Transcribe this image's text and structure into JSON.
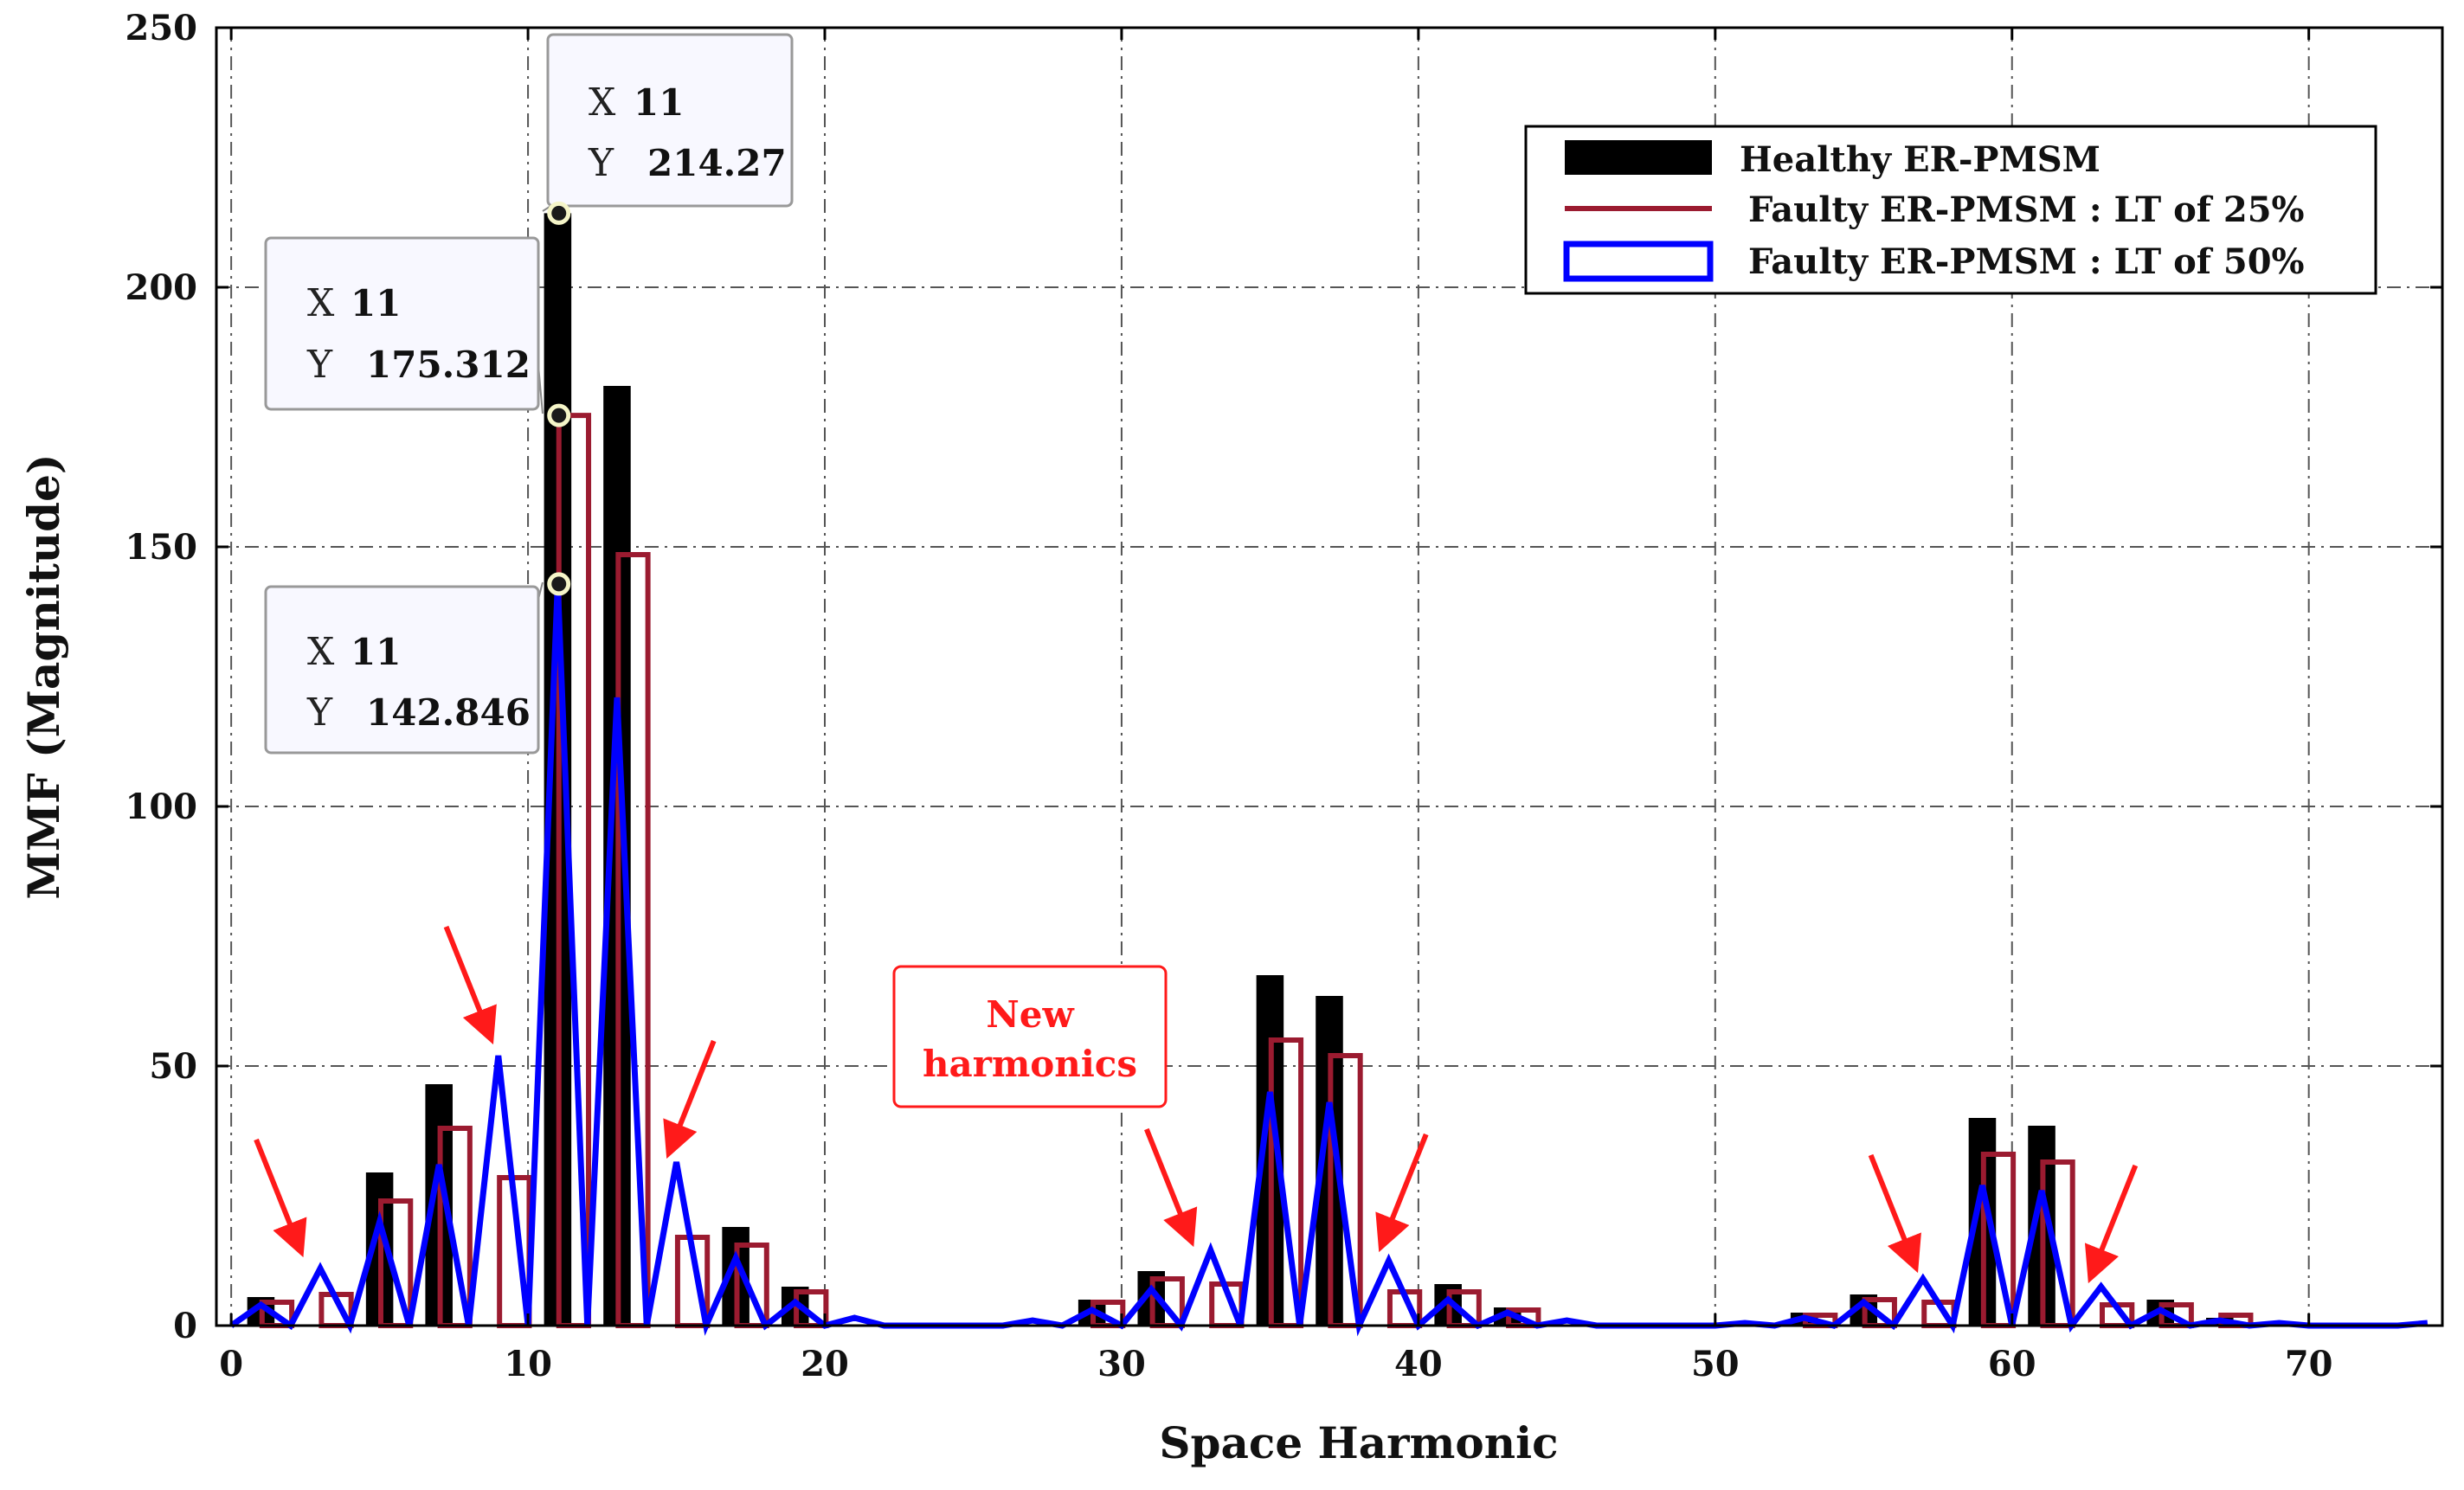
{
  "chart_data": {
    "type": "bar",
    "xlabel": "Space Harmonic",
    "ylabel": "MMF (Magnitude)",
    "xlim": [
      -0.5,
      74.5
    ],
    "ylim": [
      0,
      250
    ],
    "xticks": [
      0,
      10,
      20,
      30,
      40,
      50,
      60,
      70
    ],
    "yticks": [
      0,
      50,
      100,
      150,
      200,
      250
    ],
    "grid": true,
    "legend_position": "top-right",
    "series": [
      {
        "name": "Healthy ER-PMSM",
        "style": "filled bars",
        "color": "#000000",
        "points": [
          [
            1,
            5.5
          ],
          [
            5,
            29.5
          ],
          [
            7,
            46.5
          ],
          [
            11,
            214.27
          ],
          [
            13,
            181
          ],
          [
            17,
            19
          ],
          [
            19,
            7.5
          ],
          [
            29,
            5
          ],
          [
            31,
            10.5
          ],
          [
            35,
            67.5
          ],
          [
            37,
            63.5
          ],
          [
            41,
            8
          ],
          [
            43,
            3.5
          ],
          [
            53,
            2.5
          ],
          [
            55,
            6
          ],
          [
            59,
            40
          ],
          [
            61,
            38.5
          ],
          [
            65,
            5
          ],
          [
            67,
            1.5
          ]
        ]
      },
      {
        "name": "Faulty ER-PMSM :  LT of 25%",
        "style": "hollow bars",
        "color": "#9b1b30",
        "points": [
          [
            1,
            4.5
          ],
          [
            3,
            6
          ],
          [
            5,
            24
          ],
          [
            7,
            38
          ],
          [
            9,
            28.5
          ],
          [
            11,
            175.312
          ],
          [
            13,
            148.5
          ],
          [
            15,
            17
          ],
          [
            17,
            15.5
          ],
          [
            19,
            6.5
          ],
          [
            29,
            4.5
          ],
          [
            31,
            9
          ],
          [
            33,
            8
          ],
          [
            35,
            55
          ],
          [
            37,
            52
          ],
          [
            39,
            6.5
          ],
          [
            41,
            6.5
          ],
          [
            43,
            3
          ],
          [
            53,
            2
          ],
          [
            55,
            5
          ],
          [
            57,
            4.5
          ],
          [
            59,
            33
          ],
          [
            61,
            31.5
          ],
          [
            63,
            4
          ],
          [
            65,
            4
          ],
          [
            67,
            2
          ]
        ]
      },
      {
        "name": "Faulty ER-PMSM :  LT of 50%",
        "style": "line",
        "color": "#0000ff",
        "points": [
          [
            0,
            0
          ],
          [
            1,
            4
          ],
          [
            2,
            0
          ],
          [
            3,
            11
          ],
          [
            4,
            0
          ],
          [
            5,
            20
          ],
          [
            6,
            0
          ],
          [
            7,
            31
          ],
          [
            8,
            0
          ],
          [
            9,
            52
          ],
          [
            10,
            0
          ],
          [
            11,
            142.846
          ],
          [
            12,
            0
          ],
          [
            13,
            121
          ],
          [
            14,
            0
          ],
          [
            15,
            31.5
          ],
          [
            16,
            0
          ],
          [
            17,
            13
          ],
          [
            18,
            0
          ],
          [
            19,
            4.5
          ],
          [
            20,
            0
          ],
          [
            21,
            1.5
          ],
          [
            22,
            0
          ],
          [
            23,
            0
          ],
          [
            24,
            0
          ],
          [
            25,
            0
          ],
          [
            26,
            0
          ],
          [
            27,
            1
          ],
          [
            28,
            0
          ],
          [
            29,
            3
          ],
          [
            30,
            0
          ],
          [
            31,
            7
          ],
          [
            32,
            0
          ],
          [
            33,
            14.5
          ],
          [
            34,
            0
          ],
          [
            35,
            45
          ],
          [
            36,
            0
          ],
          [
            37,
            43
          ],
          [
            38,
            0
          ],
          [
            39,
            12.5
          ],
          [
            40,
            0
          ],
          [
            41,
            5
          ],
          [
            42,
            0
          ],
          [
            43,
            2.5
          ],
          [
            44,
            0
          ],
          [
            45,
            1
          ],
          [
            46,
            0
          ],
          [
            47,
            0
          ],
          [
            48,
            0
          ],
          [
            49,
            0
          ],
          [
            50,
            0
          ],
          [
            51,
            0.5
          ],
          [
            52,
            0
          ],
          [
            53,
            1.5
          ],
          [
            54,
            0
          ],
          [
            55,
            4.5
          ],
          [
            56,
            0
          ],
          [
            57,
            9
          ],
          [
            58,
            0
          ],
          [
            59,
            27
          ],
          [
            60,
            0
          ],
          [
            61,
            26
          ],
          [
            62,
            0
          ],
          [
            63,
            7.5
          ],
          [
            64,
            0
          ],
          [
            65,
            3
          ],
          [
            66,
            0
          ],
          [
            67,
            1
          ],
          [
            68,
            0
          ],
          [
            69,
            0.5
          ],
          [
            70,
            0
          ],
          [
            71,
            0
          ],
          [
            72,
            0
          ],
          [
            73,
            0
          ],
          [
            74,
            0.5
          ]
        ]
      }
    ],
    "datatips": [
      {
        "series": 0,
        "x": 11,
        "y": 214.27,
        "x_label": "X",
        "y_label": "Y",
        "x_text": "11",
        "y_text": "214.27"
      },
      {
        "series": 1,
        "x": 11,
        "y": 175.312,
        "x_label": "X",
        "y_label": "Y",
        "x_text": "11",
        "y_text": "175.312"
      },
      {
        "series": 2,
        "x": 11,
        "y": 142.846,
        "x_label": "X",
        "y_label": "Y",
        "x_text": "11",
        "y_text": "142.846"
      }
    ],
    "annotation": {
      "lines": [
        "New",
        "harmonics"
      ],
      "color": "#ff1a1a",
      "arrow_targets": [
        [
          2.3,
          15
        ],
        [
          8.7,
          56
        ],
        [
          14.8,
          34
        ],
        [
          32.3,
          17
        ],
        [
          38.8,
          16
        ],
        [
          56.7,
          12
        ],
        [
          62.7,
          10
        ]
      ]
    }
  }
}
